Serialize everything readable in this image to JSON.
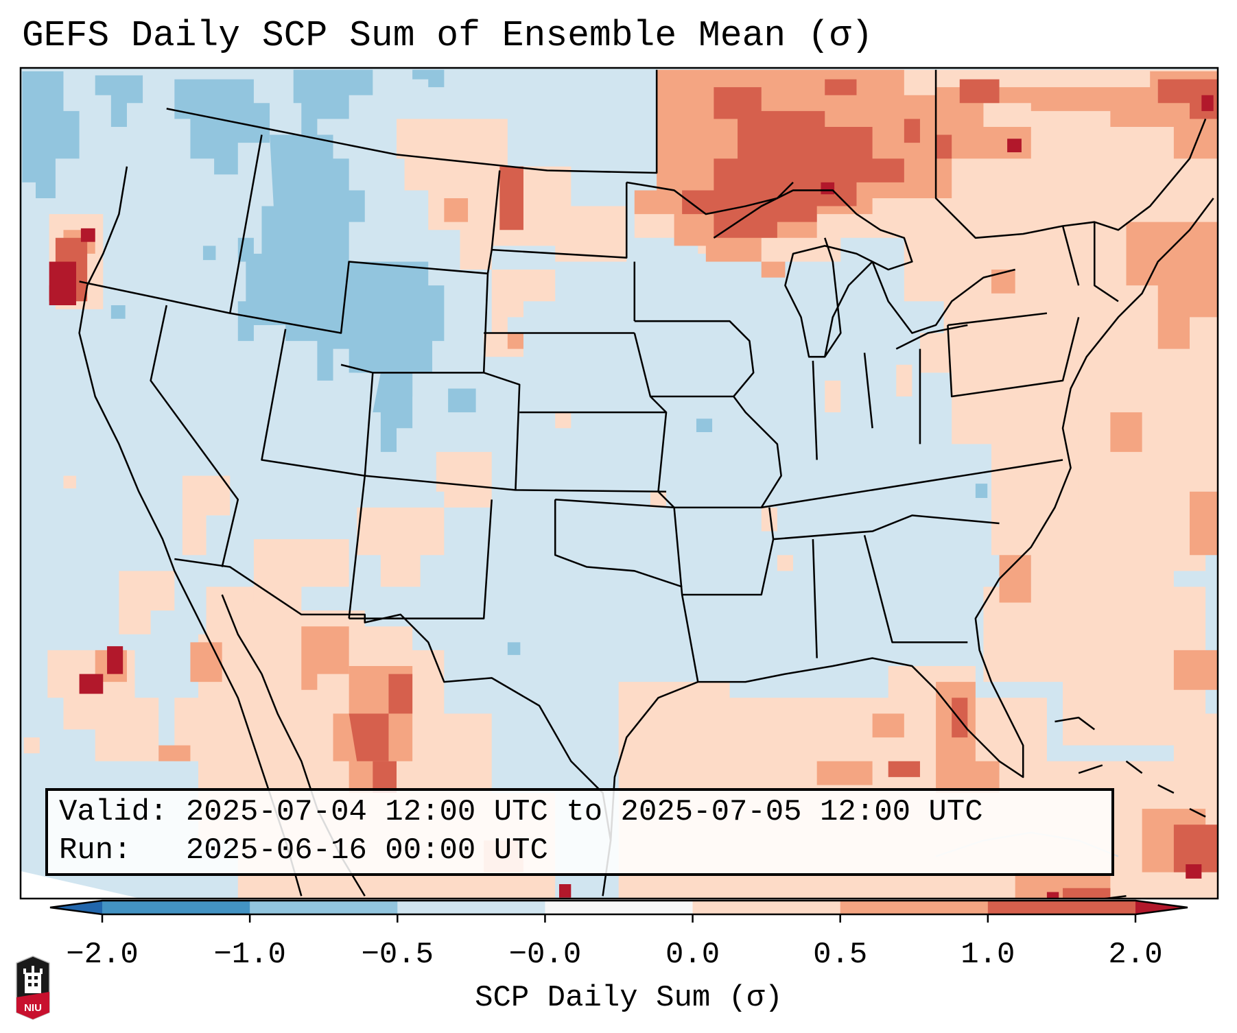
{
  "title": "GEFS Daily SCP Sum of Ensemble Mean (σ)",
  "legend": {
    "valid_label": "Valid:",
    "valid_value": "2025-07-04 12:00 UTC to 2025-07-05 12:00 UTC",
    "run_label": "Run:",
    "run_value": "2025-06-16 00:00 UTC"
  },
  "colorbar": {
    "title": "SCP Daily Sum (σ)",
    "ticks": [
      "−2.0",
      "−1.0",
      "−0.5",
      "−0.0",
      "0.0",
      "0.5",
      "1.0",
      "2.0"
    ],
    "colors": {
      "under": "#2166ac",
      "b1": "#4393c3",
      "b2": "#92c5de",
      "b3": "#d1e5f0",
      "b4": "#f7f7f7",
      "b5": "#fddbc7",
      "b6": "#f4a582",
      "b7": "#d6604d",
      "over": "#b2182b"
    },
    "extend": "both"
  },
  "map": {
    "projection": "lambert-conformal",
    "region": "CONUS",
    "features": [
      "coastlines",
      "state-borders",
      "country-borders"
    ],
    "summary": {
      "northwest_us": "-1.0 to -0.5",
      "central_eastern_us": "-0.5 to -0.0",
      "northern_ontario_quebec": "0.5 to 2.0",
      "northern_mexico": "0.0 to 2.0",
      "oregon_coast_offshore": "above 2.0"
    }
  },
  "logo": {
    "text": "NIU"
  }
}
